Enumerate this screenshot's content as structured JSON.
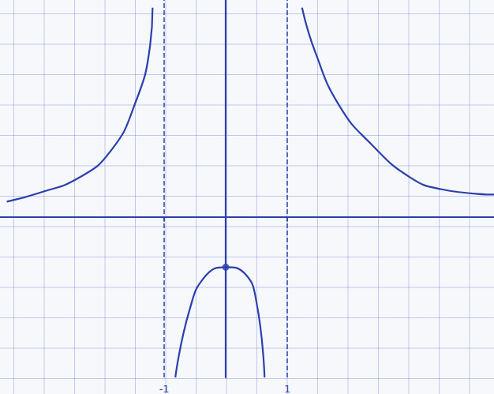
{
  "chart_data": {
    "type": "line",
    "color": "#2b3fae",
    "xlim": [
      -3.67,
      4.36
    ],
    "ylim": [
      -2.72,
      3.68
    ],
    "xticks": [
      -1,
      1
    ],
    "tick_labels": "x",
    "vlines": [
      -1,
      1
    ],
    "vline_style": "dashed",
    "series": [
      {
        "x": [
          -3.56,
          -3.03,
          -2.38,
          -1.87,
          -1.49,
          -1.23,
          -1.19
        ],
        "values": [
          0.26,
          0.41,
          0.67,
          1.12,
          1.88,
          2.91,
          3.55
        ]
      },
      {
        "x": [
          -0.82,
          -0.59,
          -0.33,
          0,
          0.31,
          0.5,
          0.63
        ],
        "values": [
          -2.72,
          -1.58,
          -1.0,
          -0.85,
          -0.96,
          -1.45,
          -2.72
        ]
      },
      {
        "x": [
          1.24,
          1.46,
          1.85,
          2.36,
          3.0,
          3.51,
          4.36
        ],
        "values": [
          3.55,
          2.78,
          1.88,
          1.24,
          0.67,
          0.47,
          0.38
        ]
      },
      {
        "type": "scatter",
        "marker": "circle",
        "x": [
          0
        ],
        "values": [
          -0.85
        ]
      }
    ]
  }
}
